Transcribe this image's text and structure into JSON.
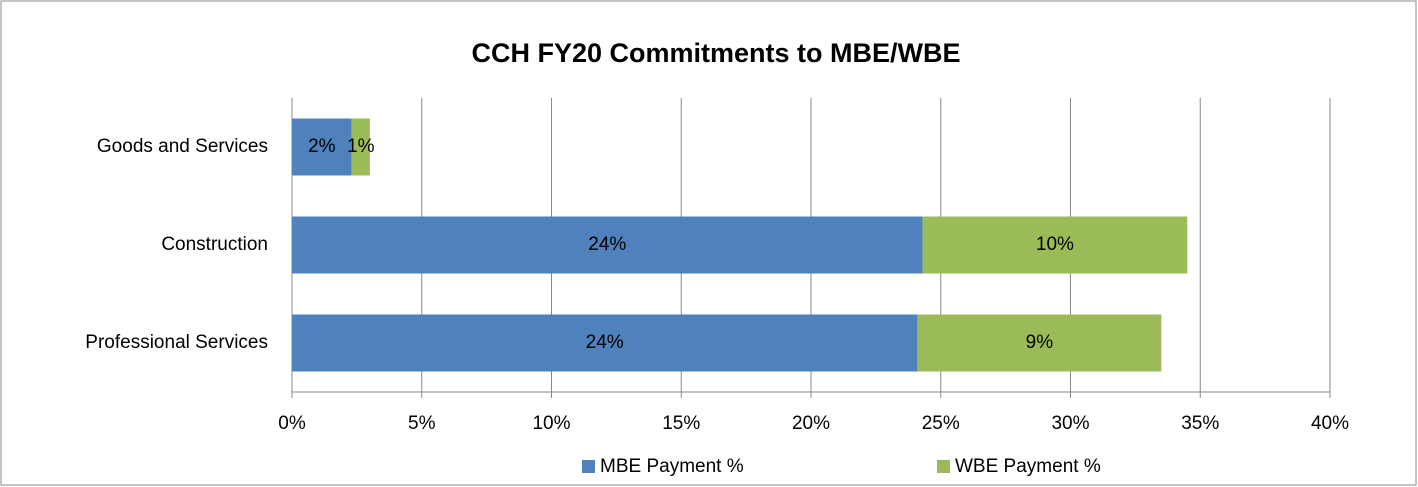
{
  "chart_data": {
    "type": "stacked_barh",
    "title": "CCH FY20 Commitments to MBE/WBE",
    "categories": [
      "Goods and Services",
      "Construction",
      "Professional Services"
    ],
    "series": [
      {
        "name": "MBE Payment %",
        "color": "#4f81bd",
        "values": [
          2.3,
          24.3,
          24.1
        ],
        "value_labels": [
          "2%",
          "24%",
          "24%"
        ]
      },
      {
        "name": "WBE Payment %",
        "color": "#9bbb59",
        "values": [
          0.7,
          10.2,
          9.4
        ],
        "value_labels": [
          "1%",
          "10%",
          "9%"
        ]
      }
    ],
    "xlim": [
      0,
      40
    ],
    "xticks": [
      {
        "value": 0,
        "label": "0%"
      },
      {
        "value": 5,
        "label": "5%"
      },
      {
        "value": 10,
        "label": "10%"
      },
      {
        "value": 15,
        "label": "15%"
      },
      {
        "value": 20,
        "label": "20%"
      },
      {
        "value": 25,
        "label": "25%"
      },
      {
        "value": 30,
        "label": "30%"
      },
      {
        "value": 35,
        "label": "35%"
      },
      {
        "value": 40,
        "label": "40%"
      }
    ],
    "grid": true,
    "legend": "bottom"
  }
}
